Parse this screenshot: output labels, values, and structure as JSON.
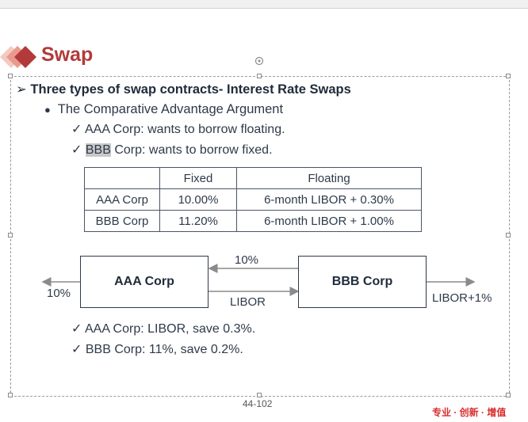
{
  "slide": {
    "title": "Swap",
    "heading": "Three types of swap contracts- Interest Rate Swaps",
    "sub_heading": "The Comparative Advantage Argument",
    "points_top": [
      {
        "check": "✓",
        "pre": "AAA Corp: wants to borrow floating."
      },
      {
        "check": "✓",
        "highlight": "BBB",
        "post": " Corp: wants to borrow fixed."
      }
    ],
    "table": {
      "headers": [
        "",
        "Fixed",
        "Floating"
      ],
      "rows": [
        [
          "AAA Corp",
          "10.00%",
          "6-month LIBOR + 0.30%"
        ],
        [
          "BBB Corp",
          "11.20%",
          "6-month LIBOR + 1.00%"
        ]
      ]
    },
    "diagram": {
      "left_box": "AAA Corp",
      "right_box": "BBB Corp",
      "top_flow": "10%",
      "bottom_flow": "LIBOR",
      "left_out": "10%",
      "right_out": "LIBOR+1%"
    },
    "points_bottom": [
      {
        "check": "✓",
        "text": "AAA Corp: LIBOR, save 0.3%."
      },
      {
        "check": "✓",
        "text": "BBB Corp: 11%, save 0.2%."
      }
    ],
    "page_number": "44-102",
    "brand": "专业 · 创新 · 增值"
  },
  "colors": {
    "title": "#b33a3a",
    "brand": "#d92b2b",
    "logo_dark": "#b33a3a",
    "logo_light": "#e8a0a0"
  }
}
